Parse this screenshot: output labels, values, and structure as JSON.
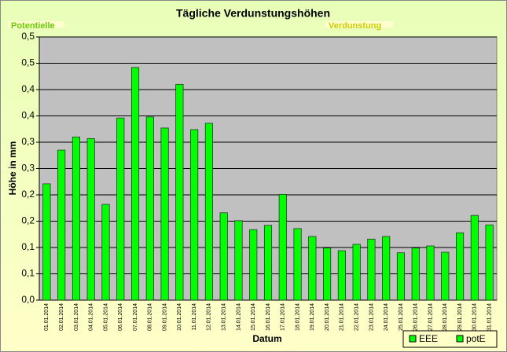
{
  "chart_data": {
    "type": "bar",
    "title": "Tägliche Verdunstungshöhen",
    "annotations": [
      "Potentielle",
      "Verdunstung"
    ],
    "x_label": "Datum",
    "y_label": "Höhe in mm",
    "categories": [
      "01.01.2014",
      "02.01.2014",
      "03.01.2014",
      "04.01.2014",
      "05.01.2014",
      "06.01.2014",
      "07.01.2014",
      "08.01.2014",
      "09.01.2014",
      "10.01.2014",
      "11.01.2014",
      "12.01.2014",
      "13.01.2014",
      "14.01.2014",
      "15.01.2014",
      "16.01.2014",
      "17.01.2014",
      "18.01.2014",
      "19.01.2014",
      "20.01.2014",
      "21.01.2014",
      "22.01.2014",
      "23.01.2014",
      "24.01.2014",
      "25.01.2014",
      "26.01.2014",
      "27.01.2014",
      "28.01.2014",
      "29.01.2014",
      "30.01.2014",
      "31.01.2014"
    ],
    "values": [
      0.221,
      0.285,
      0.31,
      0.307,
      0.182,
      0.346,
      0.442,
      0.348,
      0.327,
      0.41,
      0.324,
      0.336,
      0.166,
      0.151,
      0.134,
      0.142,
      0.201,
      0.136,
      0.121,
      0.099,
      0.094,
      0.106,
      0.116,
      0.121,
      0.09,
      0.099,
      0.103,
      0.091,
      0.128,
      0.161,
      0.143
    ],
    "color": "#00ff00",
    "legend": [
      {
        "name": "EEE",
        "color": "#00ff00"
      },
      {
        "name": "potE",
        "color": "#00ff00"
      }
    ],
    "ylim": [
      0,
      0.5
    ],
    "yticks": [
      {
        "value": 0,
        "label": "0,0"
      },
      {
        "value": 0.05,
        "label": "0,1"
      },
      {
        "value": 0.1,
        "label": "0,1"
      },
      {
        "value": 0.15,
        "label": "0,2"
      },
      {
        "value": 0.2,
        "label": "0,2"
      },
      {
        "value": 0.25,
        "label": "0,3"
      },
      {
        "value": 0.3,
        "label": "0,3"
      },
      {
        "value": 0.35,
        "label": "0,4"
      },
      {
        "value": 0.4,
        "label": "0,4"
      },
      {
        "value": 0.45,
        "label": "0,5"
      },
      {
        "value": 0.5,
        "label": "0,5"
      }
    ],
    "grid": true
  }
}
